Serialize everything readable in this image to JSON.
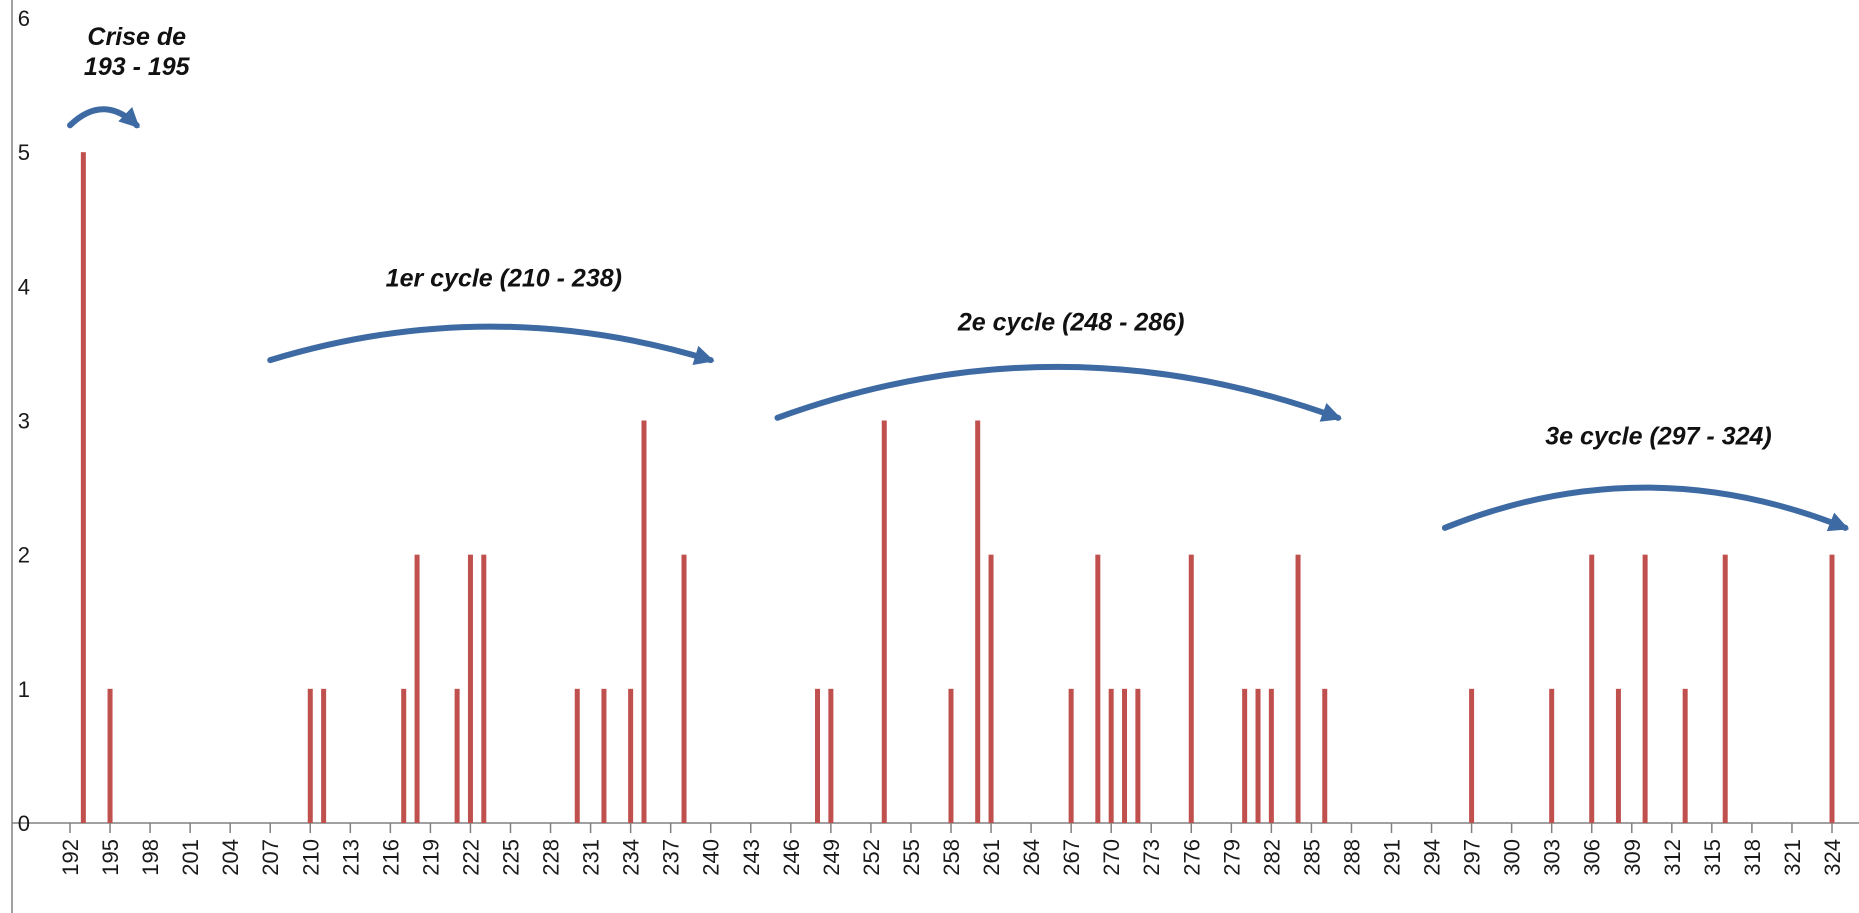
{
  "chart_data": {
    "type": "bar",
    "title": "",
    "xlabel": "",
    "ylabel": "",
    "xlim": [
      192,
      324
    ],
    "ylim": [
      0,
      6
    ],
    "x_ticks": [
      192,
      195,
      198,
      201,
      204,
      207,
      210,
      213,
      216,
      219,
      222,
      225,
      228,
      231,
      234,
      237,
      240,
      243,
      246,
      249,
      252,
      255,
      258,
      261,
      264,
      267,
      270,
      273,
      276,
      279,
      282,
      285,
      288,
      291,
      294,
      297,
      300,
      303,
      306,
      309,
      312,
      315,
      318,
      321,
      324
    ],
    "y_ticks": [
      0,
      1,
      2,
      3,
      4,
      5,
      6
    ],
    "grid": false,
    "bar_color": "#c0504d",
    "points": [
      {
        "x": 193,
        "y": 5
      },
      {
        "x": 195,
        "y": 1
      },
      {
        "x": 210,
        "y": 1
      },
      {
        "x": 211,
        "y": 1
      },
      {
        "x": 217,
        "y": 1
      },
      {
        "x": 218,
        "y": 2
      },
      {
        "x": 221,
        "y": 1
      },
      {
        "x": 222,
        "y": 2
      },
      {
        "x": 223,
        "y": 2
      },
      {
        "x": 230,
        "y": 1
      },
      {
        "x": 232,
        "y": 1
      },
      {
        "x": 234,
        "y": 1
      },
      {
        "x": 235,
        "y": 3
      },
      {
        "x": 238,
        "y": 2
      },
      {
        "x": 248,
        "y": 1
      },
      {
        "x": 249,
        "y": 1
      },
      {
        "x": 253,
        "y": 3
      },
      {
        "x": 258,
        "y": 1
      },
      {
        "x": 260,
        "y": 3
      },
      {
        "x": 261,
        "y": 2
      },
      {
        "x": 267,
        "y": 1
      },
      {
        "x": 269,
        "y": 2
      },
      {
        "x": 270,
        "y": 1
      },
      {
        "x": 271,
        "y": 1
      },
      {
        "x": 272,
        "y": 1
      },
      {
        "x": 276,
        "y": 2
      },
      {
        "x": 280,
        "y": 1
      },
      {
        "x": 281,
        "y": 1
      },
      {
        "x": 282,
        "y": 1
      },
      {
        "x": 284,
        "y": 2
      },
      {
        "x": 286,
        "y": 1
      },
      {
        "x": 297,
        "y": 1
      },
      {
        "x": 303,
        "y": 1
      },
      {
        "x": 306,
        "y": 2
      },
      {
        "x": 308,
        "y": 1
      },
      {
        "x": 310,
        "y": 2
      },
      {
        "x": 313,
        "y": 1
      },
      {
        "x": 316,
        "y": 2
      },
      {
        "x": 324,
        "y": 2
      }
    ],
    "annotations": [
      {
        "name": "crisis",
        "text_lines": [
          "Crise de",
          "193 - 195"
        ],
        "label_x": 197,
        "label_y": 5.8,
        "arc_x": [
          192,
          197
        ],
        "arc_y": 5.2,
        "arc_peak": 5.32
      },
      {
        "name": "cycle-1",
        "text_lines": [
          "1er cycle (210 - 238)"
        ],
        "label_x": 224.5,
        "label_y": 4.0,
        "arc_x": [
          207,
          240
        ],
        "arc_y": 3.45,
        "arc_peak": 3.7
      },
      {
        "name": "cycle-2",
        "text_lines": [
          "2e cycle (248 - 286)"
        ],
        "label_x": 267,
        "label_y": 3.67,
        "arc_x": [
          245,
          287
        ],
        "arc_y": 3.02,
        "arc_peak": 3.4
      },
      {
        "name": "cycle-3",
        "text_lines": [
          "3e cycle (297 - 324)"
        ],
        "label_x": 311,
        "label_y": 2.82,
        "arc_x": [
          295,
          325
        ],
        "arc_y": 2.2,
        "arc_peak": 2.5
      }
    ],
    "arrow_color": "#3e6aa3"
  }
}
